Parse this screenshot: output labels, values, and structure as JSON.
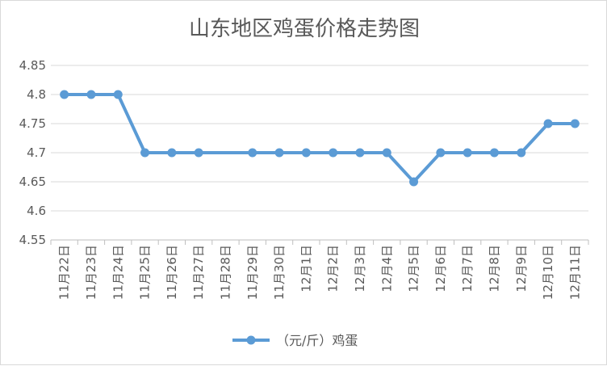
{
  "chart_data": {
    "type": "line",
    "title": "山东地区鸡蛋价格走势图",
    "xlabel": "",
    "ylabel": "",
    "categories": [
      "11月22日",
      "11月23日",
      "11月24日",
      "11月25日",
      "11月26日",
      "11月27日",
      "11月28日",
      "11月29日",
      "11月30日",
      "12月1日",
      "12月2日",
      "12月3日",
      "12月4日",
      "12月5日",
      "12月6日",
      "12月7日",
      "12月8日",
      "12月9日",
      "12月10日",
      "12月11日"
    ],
    "series": [
      {
        "name": "（元/斤）鸡蛋",
        "values": [
          4.8,
          4.8,
          4.8,
          4.7,
          4.7,
          4.7,
          null,
          4.7,
          4.7,
          4.7,
          4.7,
          4.7,
          4.7,
          4.65,
          4.7,
          4.7,
          4.7,
          4.7,
          4.75,
          4.75
        ],
        "color": "#5B9BD5"
      }
    ],
    "ylim": [
      4.55,
      4.85
    ],
    "yticks": [
      "4.55",
      "4.6",
      "4.65",
      "4.7",
      "4.75",
      "4.8",
      "4.85"
    ],
    "grid": true,
    "legend": "bottom"
  }
}
